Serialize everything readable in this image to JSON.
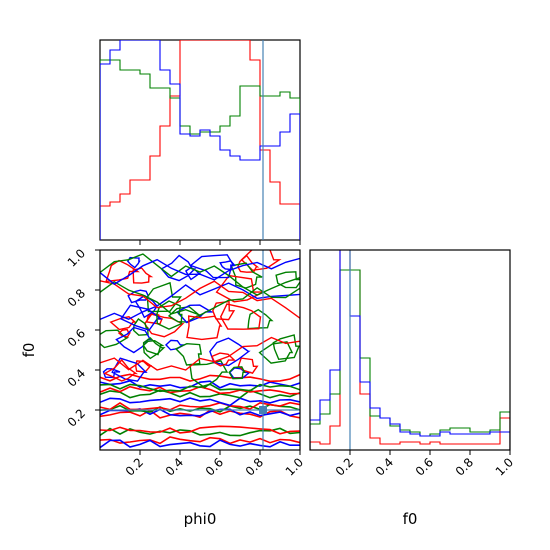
{
  "chart_data": {
    "type": "corner",
    "parameters": [
      "phi0",
      "f0"
    ],
    "axis_labels": {
      "x_left": "phi0",
      "x_right": "f0",
      "y_left": "f0"
    },
    "ranges": {
      "phi0": [
        0,
        1
      ],
      "f0": [
        0,
        1
      ]
    },
    "ticks": {
      "phi0": [
        "0.2",
        "0.4",
        "0.6",
        "0.8",
        "1.0"
      ],
      "f0": [
        "0.2",
        "0.4",
        "0.6",
        "0.8",
        "1.0"
      ]
    },
    "truth": {
      "phi0": 0.82,
      "f0": 0.2
    },
    "colors": {
      "red": "#ff0000",
      "green": "#008000",
      "blue": "#0000ff",
      "truth": "#4682b4"
    },
    "phi0_histograms": [
      {
        "color": "red",
        "values": [
          0.17,
          0.19,
          0.23,
          0.3,
          0.3,
          0.42,
          0.57,
          0.72,
          1.2,
          1.2,
          1.2,
          1.2,
          1.2,
          1.2,
          1.2,
          0.9,
          0.45,
          0.29,
          0.18,
          0.18
        ]
      },
      {
        "color": "green",
        "values": [
          0.9,
          0.9,
          0.85,
          0.85,
          0.83,
          0.76,
          0.76,
          0.71,
          0.57,
          0.53,
          0.54,
          0.54,
          0.57,
          0.62,
          0.77,
          0.77,
          0.72,
          0.72,
          0.74,
          0.71
        ]
      },
      {
        "color": "blue",
        "values": [
          0.88,
          0.95,
          1.2,
          1.2,
          1.2,
          1.2,
          0.85,
          0.78,
          0.53,
          0.52,
          0.55,
          0.52,
          0.45,
          0.42,
          0.4,
          0.4,
          0.47,
          0.47,
          0.54,
          0.63
        ]
      }
    ],
    "f0_histograms": [
      {
        "color": "red",
        "values": [
          0.04,
          0.03,
          0.12,
          1.2,
          0.9,
          0.28,
          0.06,
          0.03,
          0.03,
          0.04,
          0.04,
          0.03,
          0.04,
          0.03,
          0.03,
          0.03,
          0.03,
          0.03,
          0.03,
          0.16
        ]
      },
      {
        "color": "green",
        "values": [
          0.13,
          0.18,
          0.28,
          0.9,
          0.9,
          0.46,
          0.17,
          0.16,
          0.12,
          0.1,
          0.09,
          0.07,
          0.08,
          0.1,
          0.11,
          0.11,
          0.09,
          0.09,
          0.1,
          0.19
        ]
      },
      {
        "color": "blue",
        "values": [
          0.15,
          0.25,
          0.4,
          1.2,
          0.67,
          0.34,
          0.21,
          0.16,
          0.13,
          0.09,
          0.08,
          0.07,
          0.07,
          0.09,
          0.08,
          0.08,
          0.08,
          0.08,
          0.09,
          0.09
        ]
      }
    ],
    "joint_contours_description": "2D contour levels of phi0 vs f0 for the three series"
  }
}
